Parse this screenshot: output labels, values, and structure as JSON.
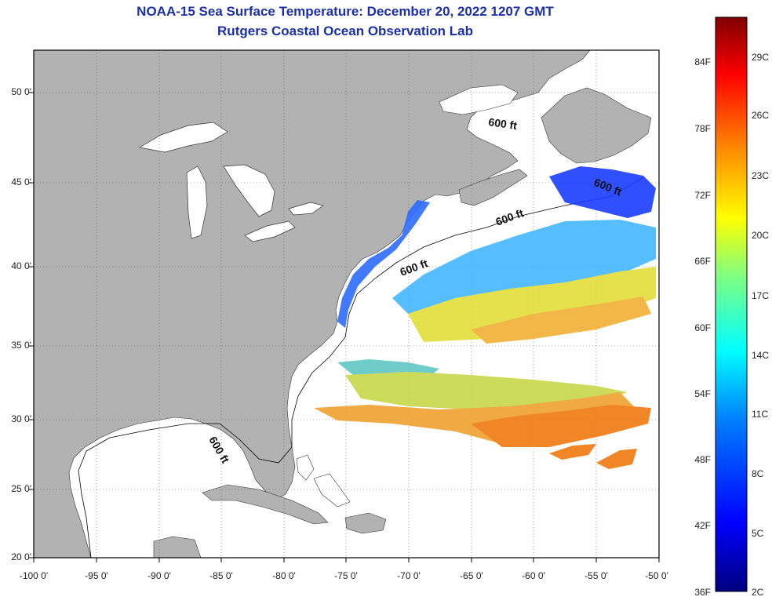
{
  "title_line1": "NOAA-15 Sea Surface Temperature:  December 20, 2022 1207 GMT",
  "title_line2": "Rutgers Coastal Ocean Observation Lab",
  "lat_labels": [
    "50 0'",
    "45 0'",
    "40 0'",
    "35 0'",
    "30 0'",
    "25 0'",
    "20 0'"
  ],
  "lon_labels": [
    "-100 0'",
    "-95 0'",
    "-90 0'",
    "-85 0'",
    "-80 0'",
    "-75 0'",
    "-70 0'",
    "-65 0'",
    "-60 0'",
    "-55 0'",
    "-50 0'"
  ],
  "depth_contour_label": "600 ft",
  "colorbar_f": [
    "84F",
    "78F",
    "72F",
    "66F",
    "60F",
    "54F",
    "48F",
    "42F",
    "36F"
  ],
  "colorbar_c": [
    "29C",
    "26C",
    "23C",
    "20C",
    "17C",
    "14C",
    "11C",
    "8C",
    "5C",
    "2C"
  ],
  "colors": {
    "land": "#b2b2b2",
    "ocean": "#ffffff",
    "title": "#1a2fa8"
  }
}
